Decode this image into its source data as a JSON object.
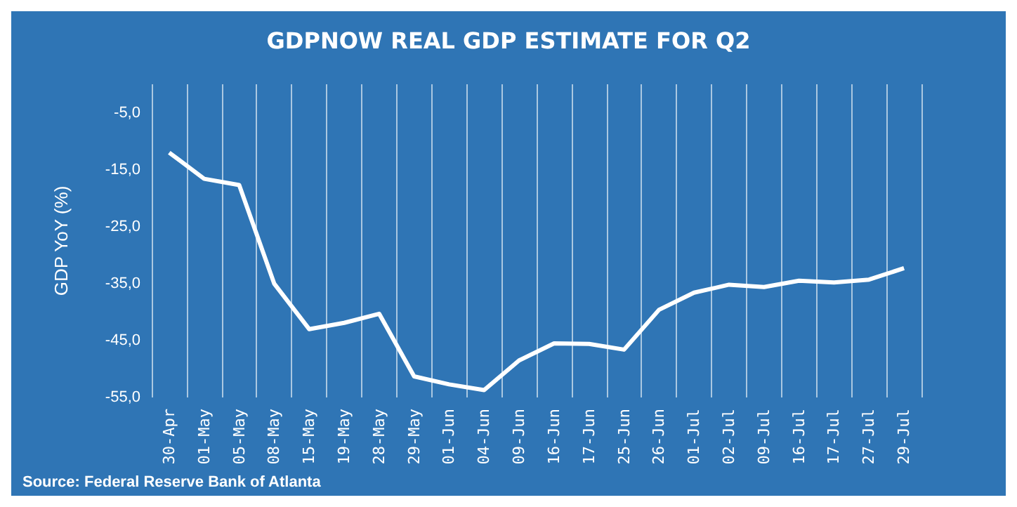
{
  "chart_data": {
    "type": "line",
    "title": "GDPNOW REAL GDP ESTIMATE FOR Q2",
    "ylabel": "GDP YoY (%)",
    "categories": [
      "30-Apr",
      "01-May",
      "05-May",
      "08-May",
      "15-May",
      "19-May",
      "28-May",
      "29-May",
      "01-Jun",
      "04-Jun",
      "09-Jun",
      "16-Jun",
      "17-Jun",
      "25-Jun",
      "26-Jun",
      "01-Jul",
      "02-Jul",
      "09-Jul",
      "16-Jul",
      "17-Jul",
      "27-Jul",
      "29-Jul"
    ],
    "series": [
      {
        "color": "#ffffff",
        "values": [
          -12.0,
          -16.6,
          -17.7,
          -35.0,
          -43.0,
          -41.9,
          -40.3,
          -51.3,
          -52.7,
          -53.7,
          -48.5,
          -45.5,
          -45.6,
          -46.6,
          -39.6,
          -36.6,
          -35.2,
          -35.6,
          -34.5,
          -34.8,
          -34.3,
          -32.3
        ]
      }
    ],
    "ylim": [
      -55,
      0
    ],
    "yticks": [
      {
        "value": -5,
        "label": "-5,0"
      },
      {
        "value": -15,
        "label": "-15,0"
      },
      {
        "value": -25,
        "label": "-25,0"
      },
      {
        "value": -35,
        "label": "-35,0"
      },
      {
        "value": -45,
        "label": "-45,0"
      },
      {
        "value": -55,
        "label": "-55,0"
      }
    ],
    "grid": "x",
    "marker": "none",
    "line_style": "solid",
    "annotations": [
      "Source: Federal Reserve Bank of Atlanta"
    ]
  }
}
